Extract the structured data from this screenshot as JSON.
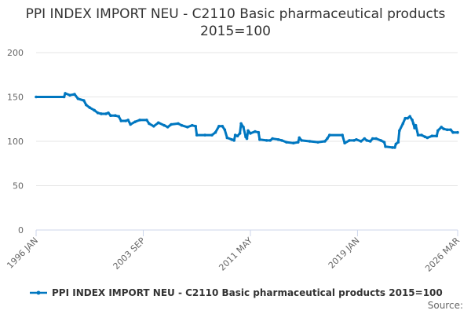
{
  "chart_data": {
    "type": "line",
    "title": "PPI INDEX IMPORT NEU - C2110 Basic pharmaceutical products 2015=100",
    "xlabel": "",
    "ylabel": "",
    "xlim": [
      "1996-01",
      "2026-03"
    ],
    "ylim": [
      0,
      200
    ],
    "y_ticks": [
      0,
      50,
      100,
      150,
      200
    ],
    "x_ticks": [
      {
        "label": "1996 JAN",
        "date": "1996-01"
      },
      {
        "label": "2003 SEP",
        "date": "2003-09"
      },
      {
        "label": "2011 MAY",
        "date": "2011-05"
      },
      {
        "label": "2019 JAN",
        "date": "2019-01"
      },
      {
        "label": "2026 MAR",
        "date": "2026-03"
      }
    ],
    "grid": true,
    "legend_position": "bottom",
    "color": "#0077c0",
    "series": [
      {
        "name": "PPI INDEX IMPORT NEU - C2110 Basic pharmaceutical products 2015=100",
        "x": [
          "1996-01",
          "1998-01",
          "1998-02",
          "1998-06",
          "1998-10",
          "1999-01",
          "1999-06",
          "1999-08",
          "1999-11",
          "2000-03",
          "2000-06",
          "2000-09",
          "2001-01",
          "2001-03",
          "2001-05",
          "2001-09",
          "2001-12",
          "2002-02",
          "2002-06",
          "2002-08",
          "2002-10",
          "2003-02",
          "2003-06",
          "2003-12",
          "2004-02",
          "2004-06",
          "2004-10",
          "2005-03",
          "2005-06",
          "2005-09",
          "2006-03",
          "2006-06",
          "2006-11",
          "2007-03",
          "2007-06",
          "2007-07",
          "2008-02",
          "2008-08",
          "2008-11",
          "2009-02",
          "2009-05",
          "2009-07",
          "2009-09",
          "2010-01",
          "2010-03",
          "2010-04",
          "2010-06",
          "2010-08",
          "2010-09",
          "2010-11",
          "2011-01",
          "2011-02",
          "2011-03",
          "2011-05",
          "2011-09",
          "2011-12",
          "2012-01",
          "2012-07",
          "2012-10",
          "2012-12",
          "2013-05",
          "2013-08",
          "2013-12",
          "2014-06",
          "2014-10",
          "2014-11",
          "2015-01",
          "2015-08",
          "2016-03",
          "2016-09",
          "2016-11",
          "2017-01",
          "2017-12",
          "2018-02",
          "2018-06",
          "2018-10",
          "2018-12",
          "2019-04",
          "2019-07",
          "2019-09",
          "2019-12",
          "2020-02",
          "2020-05",
          "2020-09",
          "2020-12",
          "2021-01",
          "2021-07",
          "2021-09",
          "2021-10",
          "2021-12",
          "2022-01",
          "2022-04",
          "2022-06",
          "2022-08",
          "2022-10",
          "2022-12",
          "2023-01",
          "2023-02",
          "2023-03",
          "2023-05",
          "2023-08",
          "2023-11",
          "2024-01",
          "2024-05",
          "2024-09",
          "2024-10",
          "2025-01",
          "2025-03",
          "2025-06",
          "2025-09",
          "2025-11",
          "2026-03"
        ],
        "values": [
          150,
          150,
          154,
          152,
          153,
          148,
          146,
          141,
          138,
          135,
          132,
          131,
          131,
          132,
          129,
          129,
          128,
          123,
          123,
          124,
          119,
          122,
          124,
          124,
          120,
          117,
          121,
          118,
          116,
          119,
          120,
          118,
          116,
          118,
          117,
          107,
          107,
          107,
          110,
          117,
          117,
          113,
          104,
          102,
          101,
          107,
          106,
          109,
          120,
          116,
          105,
          103,
          112,
          109,
          111,
          110,
          102,
          101,
          101,
          103,
          102,
          101,
          99,
          98,
          99,
          104,
          101,
          100,
          99,
          100,
          103,
          107,
          107,
          98,
          101,
          101,
          102,
          100,
          103,
          101,
          100,
          103,
          103,
          101,
          99,
          94,
          93,
          93,
          97,
          99,
          112,
          120,
          126,
          126,
          128,
          124,
          120,
          115,
          118,
          107,
          107,
          105,
          104,
          106,
          106,
          112,
          116,
          114,
          113,
          113,
          110,
          110
        ]
      }
    ]
  },
  "source_label": "Source:"
}
